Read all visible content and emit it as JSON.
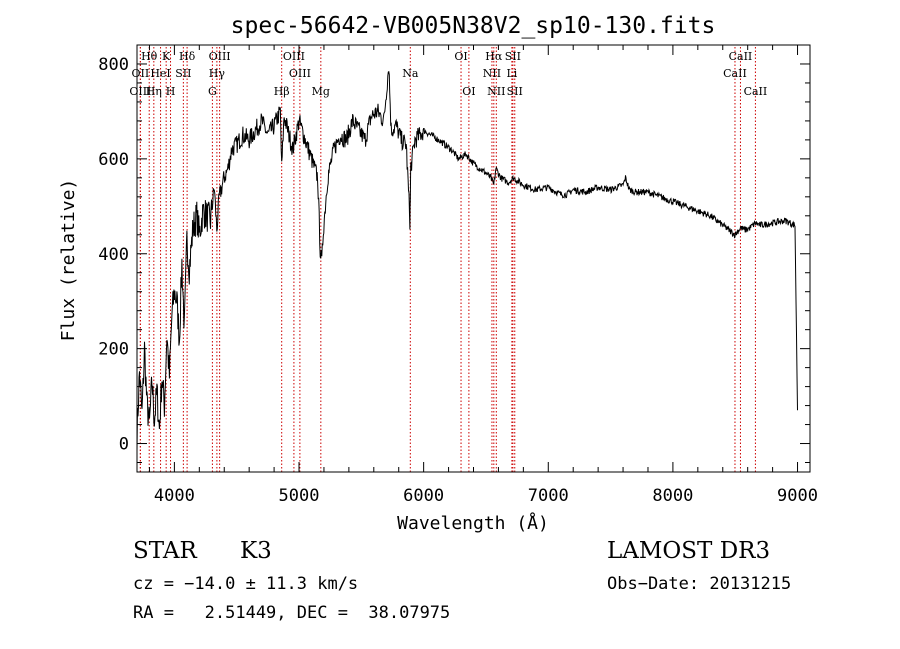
{
  "chart_data": {
    "type": "line",
    "title": "spec-56642-VB005N38V2_sp10-130.fits",
    "xlabel": "Wavelength (Å)",
    "ylabel": "Flux (relative)",
    "xlim": [
      3700,
      9100
    ],
    "ylim": [
      -60,
      840
    ],
    "xticks": [
      4000,
      5000,
      6000,
      7000,
      8000,
      9000
    ],
    "yticks": [
      0,
      200,
      400,
      600,
      800
    ],
    "grid": false,
    "series": [
      {
        "name": "flux",
        "x": [
          3700,
          3720,
          3740,
          3760,
          3780,
          3800,
          3820,
          3840,
          3860,
          3880,
          3900,
          3920,
          3940,
          3960,
          3980,
          4000,
          4020,
          4040,
          4060,
          4080,
          4100,
          4120,
          4150,
          4180,
          4200,
          4230,
          4260,
          4290,
          4320,
          4340,
          4360,
          4400,
          4430,
          4460,
          4500,
          4550,
          4600,
          4650,
          4700,
          4750,
          4800,
          4850,
          4861,
          4880,
          4920,
          4950,
          5000,
          5050,
          5100,
          5150,
          5170,
          5183,
          5195,
          5230,
          5280,
          5330,
          5380,
          5430,
          5480,
          5530,
          5580,
          5630,
          5680,
          5720,
          5740,
          5780,
          5820,
          5860,
          5890,
          5893,
          5896,
          5930,
          5970,
          6000,
          6060,
          6120,
          6170,
          6220,
          6280,
          6340,
          6400,
          6450,
          6500,
          6540,
          6563,
          6580,
          6620,
          6680,
          6720,
          6800,
          6900,
          7000,
          7100,
          7150,
          7200,
          7300,
          7400,
          7500,
          7600,
          7620,
          7650,
          7700,
          7800,
          7900,
          8000,
          8100,
          8200,
          8300,
          8400,
          8498,
          8542,
          8580,
          8620,
          8662,
          8700,
          8800,
          8900,
          8980,
          9000
        ],
        "values": [
          20,
          150,
          60,
          200,
          80,
          40,
          130,
          50,
          110,
          30,
          140,
          80,
          230,
          140,
          270,
          320,
          300,
          220,
          380,
          240,
          430,
          370,
          455,
          480,
          440,
          490,
          480,
          470,
          540,
          450,
          520,
          560,
          580,
          620,
          630,
          650,
          640,
          660,
          680,
          650,
          670,
          700,
          580,
          690,
          650,
          620,
          680,
          640,
          600,
          560,
          410,
          380,
          450,
          560,
          620,
          650,
          640,
          680,
          660,
          640,
          690,
          700,
          680,
          800,
          660,
          670,
          640,
          630,
          470,
          510,
          580,
          640,
          650,
          660,
          650,
          640,
          630,
          620,
          600,
          610,
          590,
          580,
          570,
          560,
          545,
          580,
          560,
          550,
          560,
          545,
          535,
          540,
          525,
          525,
          535,
          530,
          540,
          535,
          545,
          560,
          535,
          530,
          530,
          520,
          510,
          500,
          490,
          480,
          460,
          440,
          455,
          450,
          455,
          465,
          460,
          465,
          470,
          460,
          70
        ]
      }
    ],
    "lines": [
      {
        "label": "Hθ",
        "wl": 3798,
        "tier": 1
      },
      {
        "label": "OII",
        "wl": 3727,
        "tier": 2
      },
      {
        "label": "OIII",
        "wl": 3727,
        "tier": 3
      },
      {
        "label": "Hη",
        "wl": 3835,
        "tier": 3
      },
      {
        "label": "HeI",
        "wl": 3889,
        "tier": 2
      },
      {
        "label": "K",
        "wl": 3934,
        "tier": 1
      },
      {
        "label": "H",
        "wl": 3969,
        "tier": 3
      },
      {
        "label": "SII",
        "wl": 4072,
        "tier": 2
      },
      {
        "label": "Hδ",
        "wl": 4102,
        "tier": 1
      },
      {
        "label": "OIII",
        "wl": 4363,
        "tier": 1
      },
      {
        "label": "Hγ",
        "wl": 4341,
        "tier": 2
      },
      {
        "label": "G",
        "wl": 4305,
        "tier": 3
      },
      {
        "label": "Hβ",
        "wl": 4861,
        "tier": 3
      },
      {
        "label": "OIII",
        "wl": 4959,
        "tier": 1
      },
      {
        "label": "OIII",
        "wl": 5007,
        "tier": 2
      },
      {
        "label": "Mg",
        "wl": 5175,
        "tier": 3
      },
      {
        "label": "Na",
        "wl": 5893,
        "tier": 2
      },
      {
        "label": "OI",
        "wl": 6300,
        "tier": 1
      },
      {
        "label": "OI",
        "wl": 6363,
        "tier": 3
      },
      {
        "label": "Hα",
        "wl": 6563,
        "tier": 1
      },
      {
        "label": "NII",
        "wl": 6548,
        "tier": 2
      },
      {
        "label": "NII",
        "wl": 6583,
        "tier": 3
      },
      {
        "label": "SII",
        "wl": 6716,
        "tier": 1
      },
      {
        "label": "Li",
        "wl": 6708,
        "tier": 2
      },
      {
        "label": "SII",
        "wl": 6731,
        "tier": 3
      },
      {
        "label": "CaII",
        "wl": 8542,
        "tier": 1
      },
      {
        "label": "CaII",
        "wl": 8498,
        "tier": 2
      },
      {
        "label": "CaII",
        "wl": 8662,
        "tier": 3
      }
    ]
  },
  "info": {
    "object_class": "STAR",
    "subclass": "K3",
    "survey": "LAMOST DR3",
    "redshift": "cz = −14.0 ± 11.3 km/s",
    "obs_date": "Obs−Date: 20131215",
    "coords": "RA =   2.51449, DEC =  38.07975"
  },
  "colors": {
    "axis": "#000000",
    "line_marker": "#cc0000",
    "spectrum": "#000000"
  }
}
